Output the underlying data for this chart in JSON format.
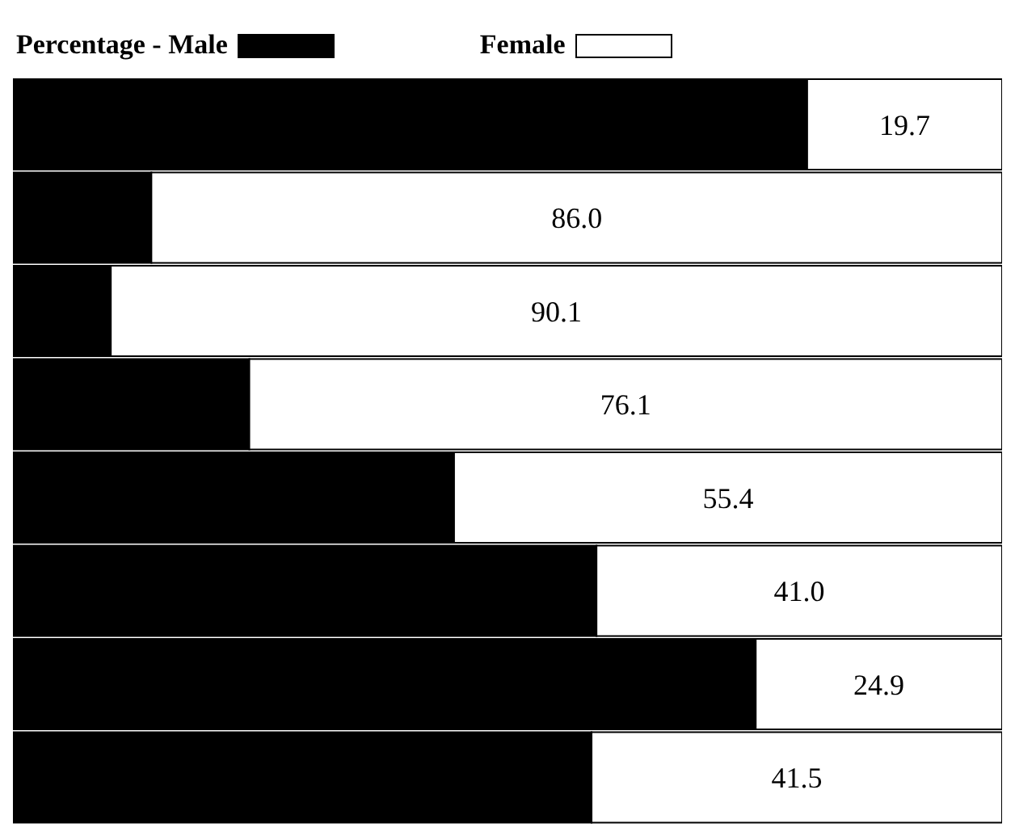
{
  "chart_data": {
    "type": "bar",
    "orientation": "horizontal",
    "stacked": true,
    "categories": [
      null,
      null,
      null,
      null,
      null,
      null,
      null,
      null
    ],
    "xlim": [
      0,
      100
    ],
    "legend": "top left",
    "grid": false,
    "series": [
      {
        "name": "Percentage - Male",
        "color": "#000000",
        "values": [
          80.3,
          14.0,
          9.9,
          23.9,
          44.6,
          59.0,
          75.1,
          58.5
        ]
      },
      {
        "name": "Female",
        "color": "#ffffff",
        "values": [
          19.7,
          86.0,
          90.1,
          76.1,
          55.4,
          41.0,
          24.9,
          41.5
        ],
        "value_labels": [
          "19.7",
          "86.0",
          "90.1",
          "76.1",
          "55.4",
          "41.0",
          "24.9",
          "41.5"
        ]
      }
    ]
  }
}
